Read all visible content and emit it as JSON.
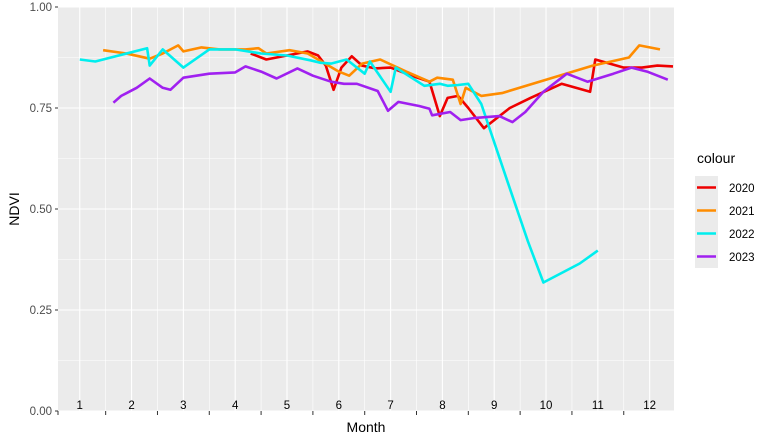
{
  "chart_data": {
    "type": "line",
    "title": "",
    "xlabel": "Month",
    "ylabel": "NDVI",
    "xlim": [
      0.58,
      12.47
    ],
    "ylim": [
      0,
      1
    ],
    "x_tick_values": [
      1,
      2,
      3,
      4,
      5,
      6,
      7,
      8,
      9,
      10,
      11,
      12
    ],
    "x_tick_labels": [
      "1",
      "2",
      "3",
      "4",
      "5",
      "6",
      "7",
      "8",
      "9",
      "10",
      "11",
      "12"
    ],
    "y_ticks": [
      0,
      0.25,
      0.5,
      0.75,
      1
    ],
    "y_tick_labels": [
      "0.00",
      "0.25",
      "0.50",
      "0.75",
      "1.00"
    ],
    "grid": true,
    "legend": {
      "title": "colour",
      "position": "right"
    },
    "series": [
      {
        "name": "2020",
        "color": "#ee0000",
        "points": [
          [
            4.3,
            0.885
          ],
          [
            4.6,
            0.87
          ],
          [
            5.0,
            0.88
          ],
          [
            5.4,
            0.89
          ],
          [
            5.6,
            0.88
          ],
          [
            5.75,
            0.855
          ],
          [
            5.9,
            0.795
          ],
          [
            6.05,
            0.85
          ],
          [
            6.25,
            0.878
          ],
          [
            6.45,
            0.855
          ],
          [
            6.7,
            0.848
          ],
          [
            7.0,
            0.85
          ],
          [
            7.4,
            0.83
          ],
          [
            7.75,
            0.815
          ],
          [
            7.95,
            0.73
          ],
          [
            8.1,
            0.775
          ],
          [
            8.3,
            0.78
          ],
          [
            8.5,
            0.75
          ],
          [
            8.8,
            0.7
          ],
          [
            9.3,
            0.75
          ],
          [
            9.7,
            0.775
          ],
          [
            10.3,
            0.81
          ],
          [
            10.85,
            0.79
          ],
          [
            10.95,
            0.87
          ],
          [
            11.5,
            0.85
          ],
          [
            11.85,
            0.85
          ],
          [
            12.15,
            0.855
          ],
          [
            12.45,
            0.853
          ]
        ]
      },
      {
        "name": "2021",
        "color": "#ff8c00",
        "points": [
          [
            1.45,
            0.893
          ],
          [
            1.9,
            0.885
          ],
          [
            2.35,
            0.872
          ],
          [
            2.6,
            0.885
          ],
          [
            2.9,
            0.905
          ],
          [
            3.0,
            0.89
          ],
          [
            3.35,
            0.9
          ],
          [
            3.7,
            0.895
          ],
          [
            4.2,
            0.895
          ],
          [
            4.45,
            0.898
          ],
          [
            4.6,
            0.885
          ],
          [
            5.05,
            0.893
          ],
          [
            5.4,
            0.885
          ],
          [
            5.6,
            0.87
          ],
          [
            6.0,
            0.84
          ],
          [
            6.2,
            0.83
          ],
          [
            6.45,
            0.86
          ],
          [
            6.8,
            0.87
          ],
          [
            7.3,
            0.84
          ],
          [
            7.75,
            0.815
          ],
          [
            7.9,
            0.825
          ],
          [
            8.2,
            0.82
          ],
          [
            8.35,
            0.76
          ],
          [
            8.45,
            0.8
          ],
          [
            8.75,
            0.78
          ],
          [
            9.15,
            0.787
          ],
          [
            10.0,
            0.82
          ],
          [
            10.9,
            0.855
          ],
          [
            11.6,
            0.875
          ],
          [
            11.8,
            0.905
          ],
          [
            12.2,
            0.895
          ]
        ]
      },
      {
        "name": "2022",
        "color": "#00eeee",
        "points": [
          [
            1.0,
            0.87
          ],
          [
            1.3,
            0.865
          ],
          [
            2.3,
            0.898
          ],
          [
            2.35,
            0.855
          ],
          [
            2.6,
            0.895
          ],
          [
            3.0,
            0.85
          ],
          [
            3.5,
            0.895
          ],
          [
            4.0,
            0.895
          ],
          [
            4.5,
            0.885
          ],
          [
            5.0,
            0.88
          ],
          [
            5.45,
            0.868
          ],
          [
            5.65,
            0.862
          ],
          [
            5.85,
            0.86
          ],
          [
            6.15,
            0.87
          ],
          [
            6.5,
            0.835
          ],
          [
            6.6,
            0.865
          ],
          [
            7.0,
            0.79
          ],
          [
            7.1,
            0.85
          ],
          [
            7.65,
            0.805
          ],
          [
            7.95,
            0.81
          ],
          [
            8.1,
            0.805
          ],
          [
            8.3,
            0.807
          ],
          [
            8.5,
            0.81
          ],
          [
            8.75,
            0.76
          ],
          [
            9.25,
            0.57
          ],
          [
            9.65,
            0.42
          ],
          [
            9.95,
            0.318
          ],
          [
            10.35,
            0.345
          ],
          [
            10.65,
            0.365
          ],
          [
            11.0,
            0.397
          ]
        ]
      },
      {
        "name": "2023",
        "color": "#a020f0",
        "points": [
          [
            1.65,
            0.763
          ],
          [
            1.8,
            0.78
          ],
          [
            2.1,
            0.8
          ],
          [
            2.35,
            0.823
          ],
          [
            2.6,
            0.8
          ],
          [
            2.75,
            0.795
          ],
          [
            3.0,
            0.825
          ],
          [
            3.5,
            0.835
          ],
          [
            4.0,
            0.838
          ],
          [
            4.2,
            0.853
          ],
          [
            4.5,
            0.84
          ],
          [
            4.8,
            0.823
          ],
          [
            5.2,
            0.848
          ],
          [
            5.5,
            0.83
          ],
          [
            5.85,
            0.815
          ],
          [
            6.1,
            0.81
          ],
          [
            6.35,
            0.81
          ],
          [
            6.75,
            0.792
          ],
          [
            6.95,
            0.743
          ],
          [
            7.15,
            0.765
          ],
          [
            7.55,
            0.755
          ],
          [
            7.75,
            0.748
          ],
          [
            7.8,
            0.732
          ],
          [
            8.15,
            0.74
          ],
          [
            8.35,
            0.72
          ],
          [
            8.6,
            0.725
          ],
          [
            9.1,
            0.73
          ],
          [
            9.35,
            0.715
          ],
          [
            9.6,
            0.74
          ],
          [
            9.95,
            0.79
          ],
          [
            10.4,
            0.835
          ],
          [
            10.8,
            0.815
          ],
          [
            11.3,
            0.835
          ],
          [
            11.65,
            0.85
          ],
          [
            11.95,
            0.84
          ],
          [
            12.35,
            0.82
          ]
        ]
      }
    ]
  }
}
